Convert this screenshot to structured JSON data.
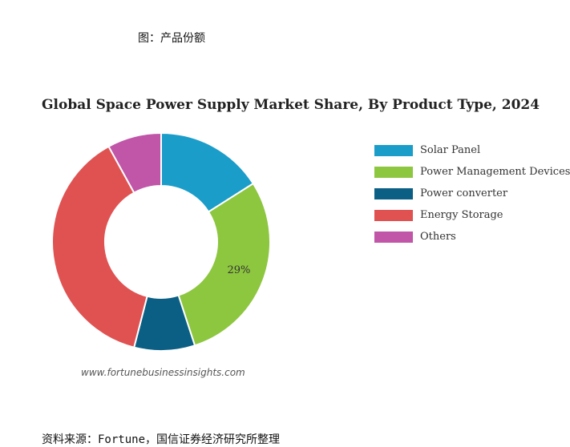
{
  "figure_caption": "图：产品份额",
  "chart_data": {
    "type": "pie",
    "title": "Global Space Power Supply Market Share, By Product Type, 2024",
    "categories": [
      "Solar Panel",
      "Power Management Devices",
      "Power converter",
      "Energy Storage",
      "Others"
    ],
    "values": [
      16,
      29,
      9,
      38,
      8
    ],
    "colors": [
      "#1b9dc9",
      "#8dc63f",
      "#0b5f84",
      "#e05252",
      "#c155a8"
    ],
    "data_labels": [
      "",
      "29%",
      "",
      "",
      ""
    ],
    "legend_position": "right",
    "donut": true
  },
  "watermark": "www.fortunebusinessinsights.com",
  "source": "资料来源：Fortune，国信证券经济研究所整理"
}
